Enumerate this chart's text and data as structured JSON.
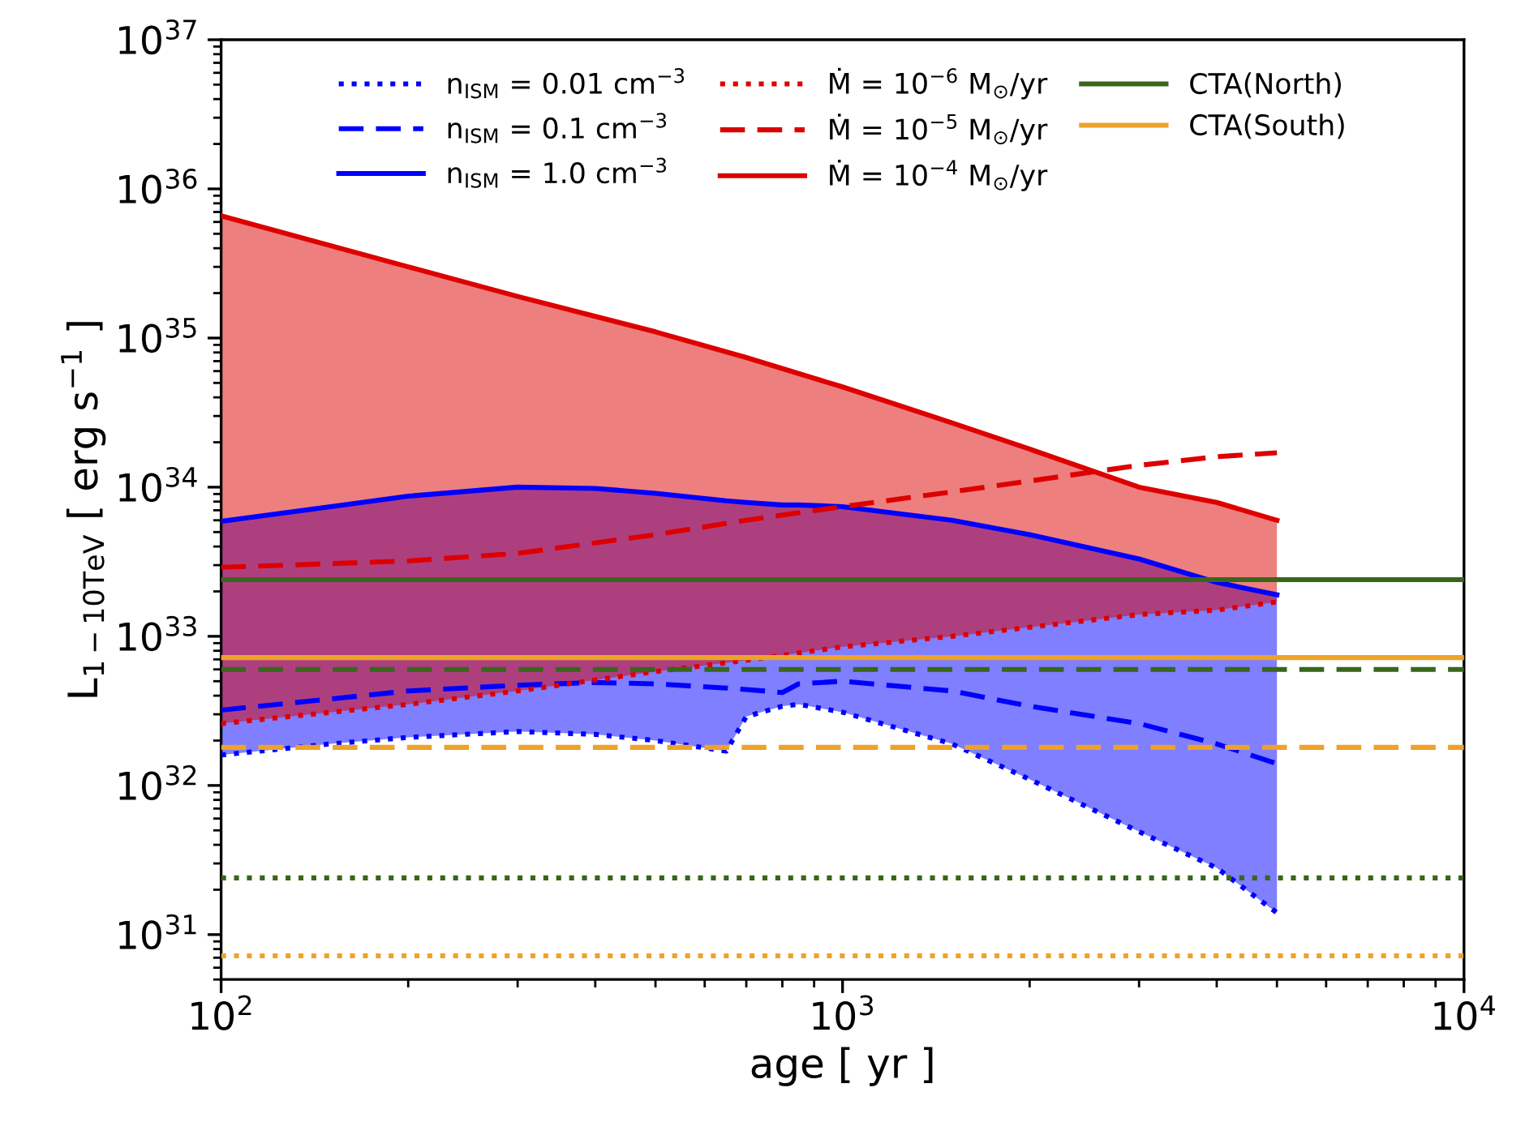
{
  "chart_data": {
    "type": "line",
    "xlabel": "age [ yr ]",
    "ylabel": "L$_{1−10TeV}$ [ erg s$^{−1}$ ]",
    "log": "xy",
    "xlim": [
      100,
      10000
    ],
    "xticks": [
      {
        "value": 100,
        "label": "10$^{2}$"
      },
      {
        "value": 1000,
        "label": "10$^{3}$"
      },
      {
        "value": 10000,
        "label": "10$^{4}$"
      }
    ],
    "ylim": [
      5e+30,
      1e+37
    ],
    "yticks": [
      {
        "value": 1e+31,
        "label": "10$^{31}$"
      },
      {
        "value": 1e+32,
        "label": "10$^{32}$"
      },
      {
        "value": 1e+33,
        "label": "10$^{33}$"
      },
      {
        "value": 1e+34,
        "label": "10$^{34}$"
      },
      {
        "value": 1e+35,
        "label": "10$^{35}$"
      },
      {
        "value": 1e+36,
        "label": "10$^{36}$"
      },
      {
        "value": 1e+37,
        "label": "10$^{37}$"
      }
    ],
    "grid": false,
    "legend": "top",
    "series": [
      {
        "name": "n$_{ISM}$ = 0.01 cm$^{−3}$",
        "color": "#0000ff",
        "line_style": "dotted",
        "x": [
          100,
          150,
          200,
          300,
          400,
          500,
          650,
          700,
          800,
          850,
          1000,
          1500,
          2000,
          3000,
          4000,
          5000
        ],
        "values": [
          1.6e+32,
          1.9e+32,
          2.1e+32,
          2.3e+32,
          2.2e+32,
          2e+32,
          1.7e+32,
          2.9e+32,
          3.4e+32,
          3.5e+32,
          3.1e+32,
          1.9e+32,
          1.1e+32,
          4.9e+31,
          2.8e+31,
          1.4e+31
        ]
      },
      {
        "name": "n$_{ISM}$ = 0.1 cm$^{−3}$",
        "color": "#0000ff",
        "line_style": "dashed",
        "x": [
          100,
          150,
          200,
          300,
          400,
          500,
          650,
          700,
          800,
          850,
          1000,
          1500,
          2000,
          3000,
          4000,
          5000
        ],
        "values": [
          3.2e+32,
          3.8e+32,
          4.3e+32,
          4.7e+32,
          4.9e+32,
          4.8e+32,
          4.5e+32,
          4.4e+32,
          4.2e+32,
          4.8e+32,
          5e+32,
          4.3e+32,
          3.4e+32,
          2.6e+32,
          1.9e+32,
          1.4e+32
        ]
      },
      {
        "name": "n$_{ISM}$ = 1.0 cm$^{−3}$",
        "color": "#0000ff",
        "line_style": "solid",
        "x": [
          100,
          150,
          200,
          300,
          400,
          500,
          650,
          700,
          800,
          850,
          1000,
          1500,
          2000,
          3000,
          4000,
          5000
        ],
        "values": [
          5.9e+33,
          7.4e+33,
          8.7e+33,
          1e+34,
          9.8e+33,
          9.1e+33,
          8.1e+33,
          7.9e+33,
          7.6e+33,
          7.6e+33,
          7.4e+33,
          6e+33,
          4.8e+33,
          3.3e+33,
          2.3e+33,
          1.9e+33
        ],
        "upper": [
          5.9e+33,
          7.4e+33,
          8.7e+33,
          1e+34,
          9.8e+33,
          9.1e+33,
          8.1e+33,
          7.9e+33,
          7.6e+33,
          7.6e+33,
          7.4e+33,
          6e+33,
          4.8e+33,
          3.3e+33,
          2.3e+33,
          1.9e+33
        ],
        "lower": [
          1.6e+32,
          1.9e+32,
          2.1e+32,
          2.3e+32,
          2.2e+32,
          2e+32,
          1.7e+32,
          2.9e+32,
          3.4e+32,
          3.5e+32,
          3.1e+32,
          1.9e+32,
          1.1e+32,
          4.9e+31,
          2.8e+31,
          1.4e+31
        ]
      },
      {
        "name": "Ṁ = 10$^{−6}$ M$_{⊙}$/yr",
        "color": "#dd0000",
        "line_style": "dotted",
        "x": [
          100,
          200,
          300,
          500,
          700,
          1000,
          1500,
          2000,
          3000,
          4000,
          5000
        ],
        "values": [
          2.6e+32,
          3.5e+32,
          4.3e+32,
          5.8e+32,
          6.9e+32,
          8.5e+32,
          1e+33,
          1.15e+33,
          1.4e+33,
          1.5e+33,
          1.7e+33
        ]
      },
      {
        "name": "Ṁ = 10$^{−5}$ M$_{⊙}$/yr",
        "color": "#dd0000",
        "line_style": "dashed",
        "x": [
          100,
          200,
          300,
          500,
          700,
          1000,
          1500,
          2000,
          3000,
          4000,
          5000
        ],
        "values": [
          2.9e+33,
          3.2e+33,
          3.6e+33,
          4.8e+33,
          6e+33,
          7.4e+33,
          9.3e+33,
          1.1e+34,
          1.4e+34,
          1.6e+34,
          1.7e+34
        ]
      },
      {
        "name": "Ṁ = 10$^{−4}$ M$_{⊙}$/yr",
        "color": "#dd0000",
        "line_style": "solid",
        "x": [
          100,
          200,
          300,
          500,
          700,
          1000,
          1500,
          2000,
          3000,
          4000,
          5000
        ],
        "values": [
          6.6e+35,
          3e+35,
          1.9e+35,
          1.1e+35,
          7.4e+34,
          4.7e+34,
          2.7e+34,
          1.8e+34,
          1e+34,
          7.9e+33,
          6e+33
        ],
        "upper": [
          6.6e+35,
          3e+35,
          1.9e+35,
          1.1e+35,
          7.4e+34,
          4.7e+34,
          2.7e+34,
          1.8e+34,
          1e+34,
          7.9e+33,
          6e+33
        ],
        "lower": [
          2.6e+32,
          3.5e+32,
          4.3e+32,
          5.8e+32,
          6.9e+32,
          8.5e+32,
          1e+33,
          1.15e+33,
          1.4e+33,
          1.5e+33,
          1.7e+33
        ]
      },
      {
        "name": "CTA(North)",
        "color": "#38661b",
        "line_style": "solid",
        "x": [
          100,
          10000
        ],
        "values": [
          2.4e+33,
          2.4e+33
        ]
      },
      {
        "name": "CTA(South)",
        "color": "#eda229",
        "line_style": "solid",
        "x": [
          100,
          10000
        ],
        "values": [
          7.2e+32,
          7.2e+32
        ]
      },
      {
        "color": "#38661b",
        "line_style": "dashed",
        "x": [
          100,
          10000
        ],
        "values": [
          6e+32,
          6e+32
        ]
      },
      {
        "color": "#38661b",
        "line_style": "dotted",
        "x": [
          100,
          10000
        ],
        "values": [
          2.4e+31,
          2.4e+31
        ]
      },
      {
        "color": "#eda229",
        "line_style": "dashed",
        "x": [
          100,
          10000
        ],
        "values": [
          1.8e+32,
          1.8e+32
        ]
      },
      {
        "color": "#eda229",
        "line_style": "dotted",
        "x": [
          100,
          10000
        ],
        "values": [
          7.2e+30,
          7.2e+30
        ]
      }
    ]
  }
}
